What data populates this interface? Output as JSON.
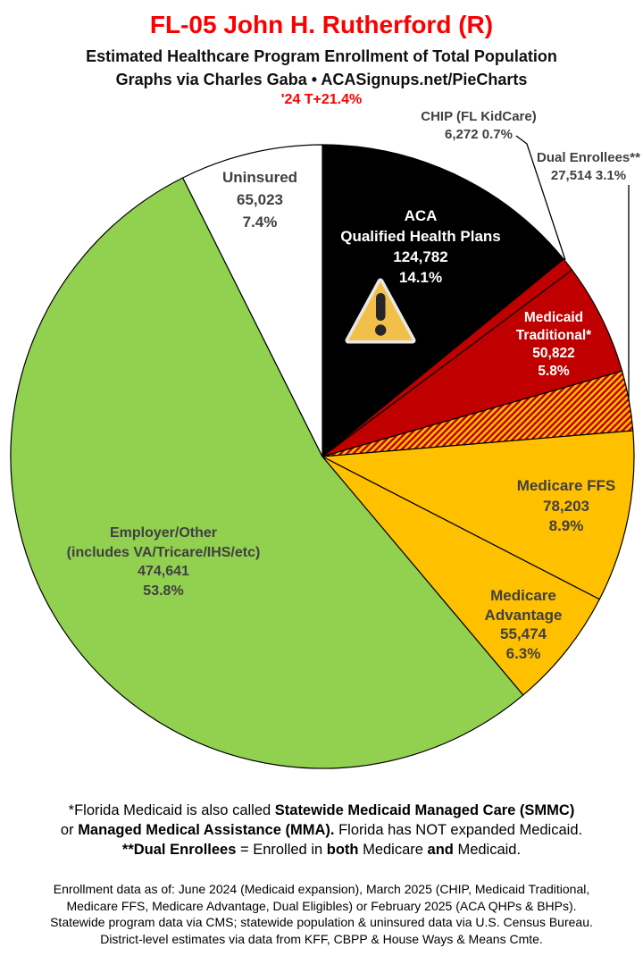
{
  "header": {
    "title": "FL-05 John H. Rutherford (R)",
    "subtitle": "Estimated Healthcare Program Enrollment of Total Population",
    "byline": "Graphs via Charles Gaba   •   ACASignups.net/PieCharts",
    "trend": "'24 T+21.4%"
  },
  "colors": {
    "title_red": "#FB0000",
    "slice_black": "#000000",
    "slice_red": "#C00000",
    "slice_gold": "#FFC000",
    "slice_green": "#92D050",
    "slice_white": "#FFFFFF",
    "label_dark": "#404040",
    "label_light": "#FFFFFF",
    "slice_stroke": "#000000",
    "warning_amber": "#F2C04A"
  },
  "chart_data": {
    "type": "pie",
    "title": "Estimated Healthcare Program Enrollment of Total Population",
    "start_angle_deg_from_12_oclock": 0,
    "direction": "clockwise",
    "slices": [
      {
        "id": "aca-qhp",
        "name": "ACA Qualified Health Plans",
        "name_lines": [
          "ACA",
          "Qualified Health Plans"
        ],
        "value": 124782,
        "value_label": "124,782",
        "pct": 14.1,
        "pct_label": "14.1%",
        "color": "#000000",
        "label_color": "#FFFFFF"
      },
      {
        "id": "chip",
        "name": "CHIP (FL KidCare)",
        "value": 6272,
        "value_label": "6,272",
        "pct": 0.7,
        "pct_label": "0.7%",
        "color": "#C00000",
        "outside_label": "CHIP (FL KidCare)",
        "outside_value": "6,272 0.7%"
      },
      {
        "id": "medicaid-traditional",
        "name": "Medicaid Traditional*",
        "name_lines": [
          "Medicaid",
          "Traditional*"
        ],
        "value": 50822,
        "value_label": "50,822",
        "pct": 5.8,
        "pct_label": "5.8%",
        "color": "#C00000",
        "label_color": "#FFFFFF"
      },
      {
        "id": "dual-enrollees",
        "name": "Dual Enrollees**",
        "value": 27514,
        "value_label": "27,514",
        "pct": 3.1,
        "pct_label": "3.1%",
        "color": "pattern:red-gold-hatch",
        "outside_label": "Dual Enrollees**",
        "outside_value": "27,514 3.1%"
      },
      {
        "id": "medicare-ffs",
        "name": "Medicare FFS",
        "name_lines": [
          "Medicare FFS"
        ],
        "value": 78203,
        "value_label": "78,203",
        "pct": 8.9,
        "pct_label": "8.9%",
        "color": "#FFC000",
        "label_color": "#404040"
      },
      {
        "id": "medicare-advantage",
        "name": "Medicare Advantage",
        "name_lines": [
          "Medicare",
          "Advantage"
        ],
        "value": 55474,
        "value_label": "55,474",
        "pct": 6.3,
        "pct_label": "6.3%",
        "color": "#FFC000",
        "label_color": "#404040"
      },
      {
        "id": "employer-other",
        "name": "Employer/Other (includes VA/Tricare/IHS/etc)",
        "name_lines": [
          "Employer/Other",
          "(includes VA/Tricare/IHS/etc)"
        ],
        "value": 474641,
        "value_label": "474,641",
        "pct": 53.8,
        "pct_label": "53.8%",
        "color": "#92D050",
        "label_color": "#404040"
      },
      {
        "id": "uninsured",
        "name": "Uninsured",
        "name_lines": [
          "Uninsured"
        ],
        "value": 65023,
        "value_label": "65,023",
        "pct": 7.4,
        "pct_label": "7.4%",
        "color": "#FFFFFF",
        "label_color": "#404040"
      }
    ]
  },
  "notes": {
    "medicaid_note_lines": [
      [
        {
          "t": "*Florida Medicaid is also called ",
          "b": false
        },
        {
          "t": "Statewide Medicaid Managed Care (SMMC)",
          "b": true
        }
      ],
      [
        {
          "t": "or ",
          "b": false
        },
        {
          "t": "Managed Medical Assistance (MMA).",
          "b": true
        },
        {
          "t": " Florida has NOT expanded Medicaid.",
          "b": false
        }
      ],
      [
        {
          "t": "**Dual Enrollees",
          "b": true
        },
        {
          "t": " = Enrolled in ",
          "b": false
        },
        {
          "t": "both",
          "b": true
        },
        {
          "t": " Medicare ",
          "b": false
        },
        {
          "t": "and",
          "b": true
        },
        {
          "t": " Medicaid.",
          "b": false
        }
      ]
    ],
    "source_note_lines": [
      "Enrollment data as of: June 2024 (Medicaid expansion), March 2025 (CHIP, Medicaid Traditional,",
      "Medicare FFS, Medicare Advantage, Dual Eligibles) or February 2025 (ACA QHPs & BHPs).",
      "Statewide program data via CMS; statewide population & uninsured data via U.S. Census Bureau.",
      "District-level estimates via data from KFF, CBPP & House Ways & Means Cmte."
    ]
  }
}
